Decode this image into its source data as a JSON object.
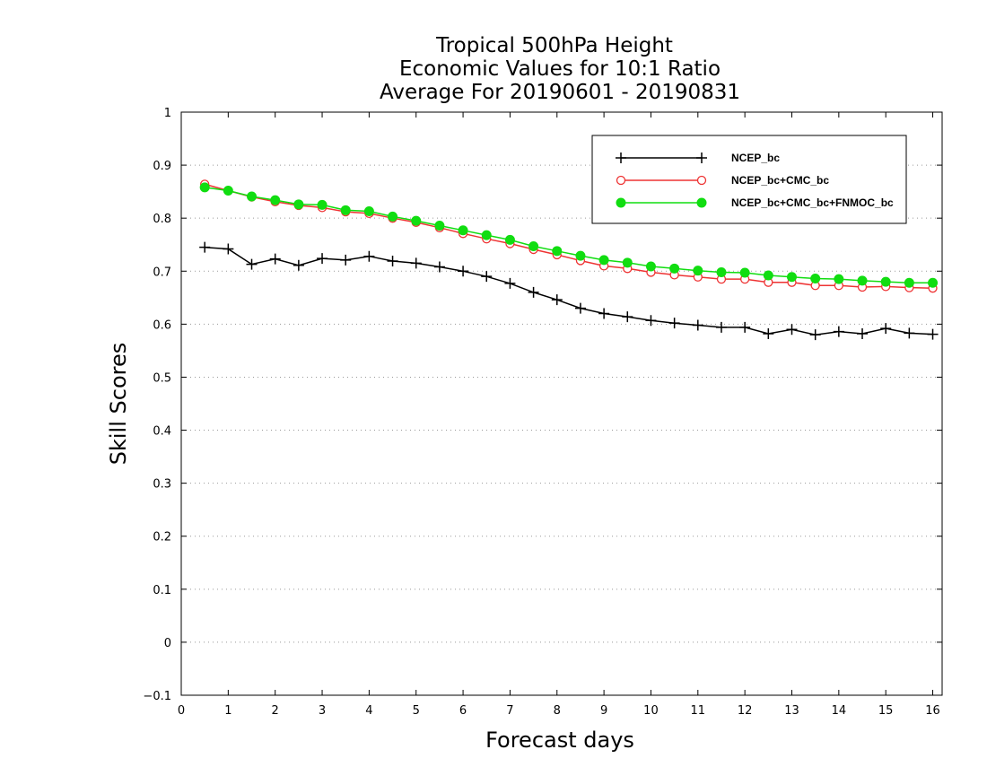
{
  "chart_data": {
    "type": "line",
    "title_lines": [
      "Tropical 500hPa Height",
      "Economic Values for 10:1 Ratio",
      "Average For 20190601 - 20190831"
    ],
    "xlabel": "Forecast days",
    "ylabel": "Skill Scores",
    "xlim": [
      0,
      16.2
    ],
    "ylim": [
      -0.1,
      1
    ],
    "x_ticks": [
      0,
      1,
      2,
      3,
      4,
      5,
      6,
      7,
      8,
      9,
      10,
      11,
      12,
      13,
      14,
      15,
      16
    ],
    "y_ticks": [
      -0.1,
      0,
      0.1,
      0.2,
      0.3,
      0.4,
      0.5,
      0.6,
      0.7,
      0.8,
      0.9,
      1
    ],
    "y_tick_labels": [
      "−0.1",
      "0",
      "0.1",
      "0.2",
      "0.3",
      "0.4",
      "0.5",
      "0.6",
      "0.7",
      "0.8",
      "0.9",
      "1"
    ],
    "grid": "horizontal-dotted",
    "legend_position": "top-right",
    "x": [
      0.5,
      1,
      1.5,
      2,
      2.5,
      3,
      3.5,
      4,
      4.5,
      5,
      5.5,
      6,
      6.5,
      7,
      7.5,
      8,
      8.5,
      9,
      9.5,
      10,
      10.5,
      11,
      11.5,
      12,
      12.5,
      13,
      13.5,
      14,
      14.5,
      15,
      15.5,
      16
    ],
    "series": [
      {
        "name": "NCEP_bc",
        "color": "#000000",
        "marker": "plus",
        "values": [
          0.745,
          0.742,
          0.713,
          0.723,
          0.711,
          0.724,
          0.721,
          0.728,
          0.719,
          0.715,
          0.708,
          0.7,
          0.69,
          0.677,
          0.66,
          0.646,
          0.63,
          0.62,
          0.614,
          0.607,
          0.602,
          0.598,
          0.594,
          0.594,
          0.582,
          0.59,
          0.58,
          0.586,
          0.582,
          0.592,
          0.583,
          0.581
        ]
      },
      {
        "name": "NCEP_bc+CMC_bc",
        "color": "#ee3333",
        "marker": "open-circle",
        "values": [
          0.864,
          0.852,
          0.84,
          0.831,
          0.824,
          0.82,
          0.812,
          0.809,
          0.8,
          0.792,
          0.782,
          0.771,
          0.761,
          0.752,
          0.741,
          0.731,
          0.72,
          0.71,
          0.705,
          0.698,
          0.693,
          0.689,
          0.685,
          0.685,
          0.679,
          0.679,
          0.673,
          0.673,
          0.67,
          0.671,
          0.669,
          0.668
        ]
      },
      {
        "name": "NCEP_bc+CMC_bc+FNMOC_bc",
        "color": "#11dd11",
        "marker": "filled-circle",
        "values": [
          0.858,
          0.852,
          0.841,
          0.834,
          0.826,
          0.825,
          0.815,
          0.813,
          0.803,
          0.795,
          0.786,
          0.777,
          0.768,
          0.759,
          0.747,
          0.738,
          0.729,
          0.721,
          0.716,
          0.709,
          0.705,
          0.701,
          0.698,
          0.697,
          0.692,
          0.689,
          0.686,
          0.685,
          0.682,
          0.68,
          0.678,
          0.678
        ]
      }
    ]
  }
}
